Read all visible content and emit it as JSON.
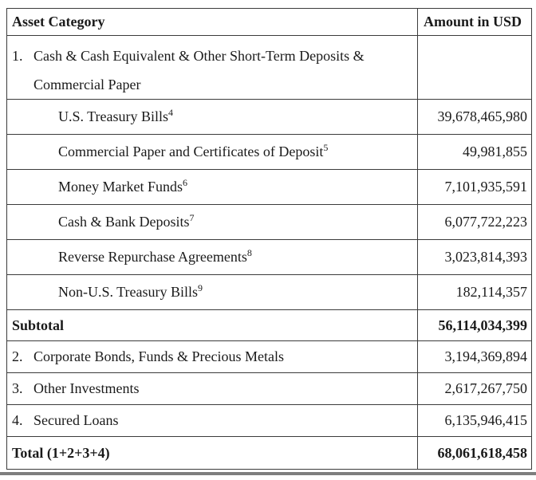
{
  "table": {
    "columns": [
      {
        "label": "Asset Category"
      },
      {
        "label": "Amount in USD"
      }
    ],
    "rows": [
      {
        "type": "group",
        "number": "1.",
        "label_lines": [
          "Cash & Cash Equivalent & Other Short-Term Deposits &",
          "Commercial Paper"
        ],
        "amount": ""
      },
      {
        "type": "sub",
        "label": "U.S. Treasury Bills",
        "footnote": "4",
        "amount": "39,678,465,980"
      },
      {
        "type": "sub",
        "label": "Commercial Paper and Certificates of Deposit",
        "footnote": "5",
        "amount": "49,981,855"
      },
      {
        "type": "sub",
        "label": "Money Market Funds",
        "footnote": "6",
        "amount": "7,101,935,591"
      },
      {
        "type": "sub",
        "label": "Cash & Bank Deposits",
        "footnote": "7",
        "amount": "6,077,722,223"
      },
      {
        "type": "sub",
        "label": "Reverse Repurchase Agreements",
        "footnote": "8",
        "amount": "3,023,814,393"
      },
      {
        "type": "sub",
        "label": "Non-U.S. Treasury Bills",
        "footnote": "9",
        "amount": "182,114,357"
      },
      {
        "type": "subtotal",
        "label": "Subtotal",
        "amount": "56,114,034,399"
      },
      {
        "type": "item",
        "number": "2.",
        "label": "Corporate Bonds, Funds & Precious Metals",
        "amount": "3,194,369,894"
      },
      {
        "type": "item",
        "number": "3.",
        "label": "Other Investments",
        "amount": "2,617,267,750"
      },
      {
        "type": "item",
        "number": "4.",
        "label": "Secured Loans",
        "amount": "6,135,946,415"
      },
      {
        "type": "total",
        "label": "Total (1+2+3+4)",
        "amount": "68,061,618,458"
      }
    ]
  },
  "colors": {
    "text": "#1a1a1a",
    "border": "#3b3b3b",
    "bottom_rule": "#7e7e7e",
    "background": "#ffffff"
  }
}
